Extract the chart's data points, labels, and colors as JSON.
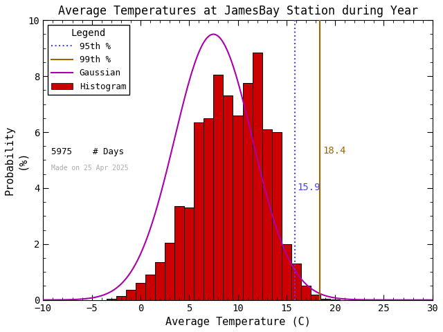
{
  "title": "Average Temperatures at JamesBay Station during Year",
  "xlabel": "Average Temperature (C)",
  "ylabel": "Probability\n(%)",
  "xlim": [
    -10,
    30
  ],
  "ylim": [
    0,
    10
  ],
  "num_days": 5975,
  "percentile_95": 15.9,
  "percentile_99": 18.4,
  "gauss_mean": 7.5,
  "gauss_std": 4.0,
  "bin_centers": [
    -3,
    -2,
    -1,
    0,
    1,
    2,
    3,
    4,
    5,
    6,
    7,
    8,
    9,
    10,
    11,
    12,
    13,
    14,
    15,
    16,
    17,
    18,
    19,
    20,
    21
  ],
  "bin_heights": [
    0.05,
    0.15,
    0.35,
    0.6,
    0.9,
    1.35,
    2.05,
    3.35,
    3.3,
    6.35,
    6.5,
    8.05,
    7.3,
    6.6,
    7.75,
    8.85,
    6.1,
    6.0,
    2.0,
    1.3,
    0.5,
    0.2,
    0.05,
    0.02,
    0.0
  ],
  "bar_color": "#cc0000",
  "bar_edge_color": "#000000",
  "gauss_color": "#aa00aa",
  "p95_color": "#4444ff",
  "p99_color": "#996600",
  "made_on_text": "Made on 25 Apr 2025",
  "made_on_color": "#aaaaaa",
  "background_color": "#ffffff",
  "title_fontsize": 12,
  "axis_fontsize": 11,
  "tick_fontsize": 10,
  "legend_title": "Legend",
  "p95_label": "95th %",
  "p99_label": "99th %",
  "gauss_label": "Gaussian",
  "hist_label": "Histogram",
  "days_label": "# Days"
}
